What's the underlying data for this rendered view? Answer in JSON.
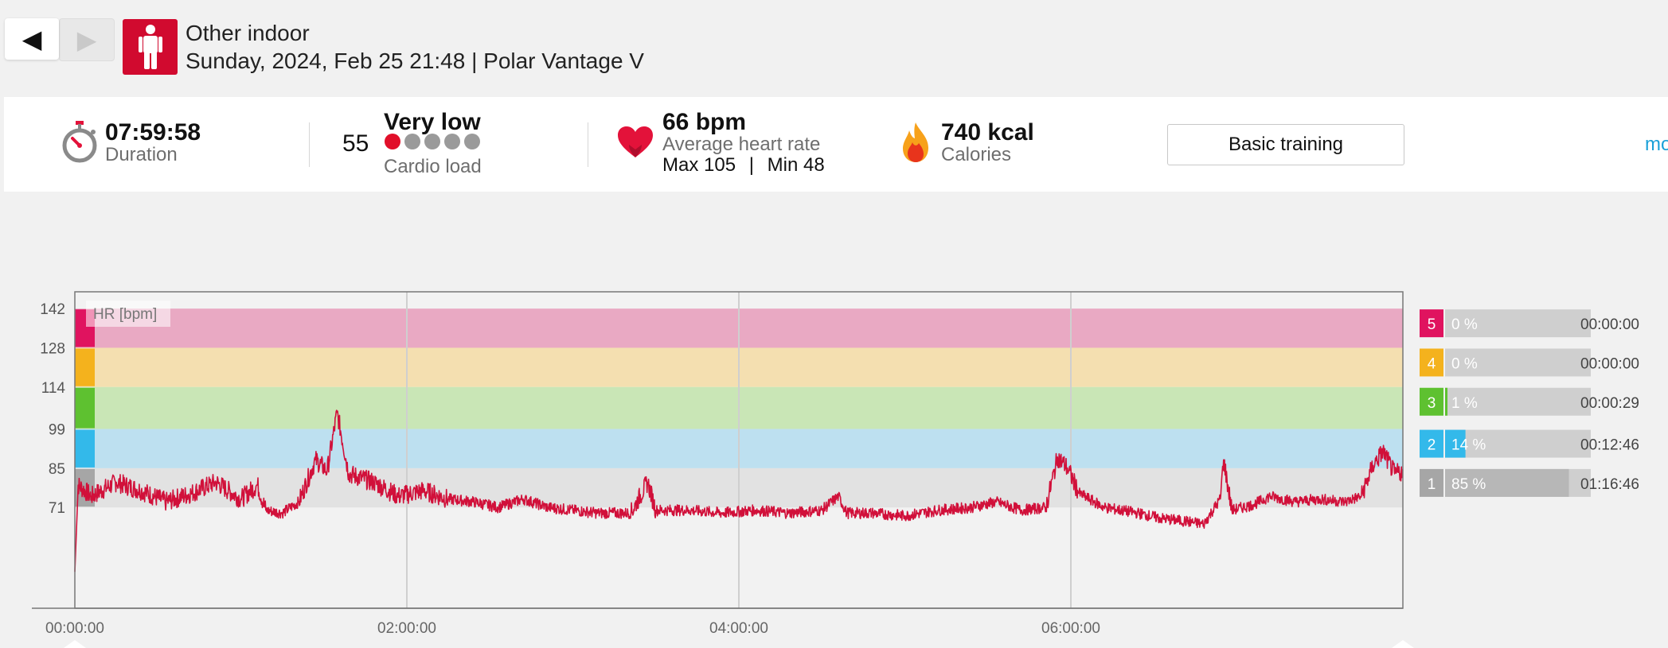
{
  "nav": {
    "back_glyph": "◀",
    "forward_glyph": "▶"
  },
  "header": {
    "sport_icon": "person-standing-icon",
    "sport": "Other indoor",
    "subtitle": "Sunday, 2024, Feb 25 21:48 | Polar Vantage V"
  },
  "summary": {
    "duration": {
      "value": "07:59:58",
      "label": "Duration",
      "icon": "stopwatch-icon"
    },
    "cardio": {
      "value": "55",
      "level": "Very low",
      "label": "Cardio load",
      "dots_total": 5,
      "dots_filled": 1
    },
    "heart": {
      "value": "66 bpm",
      "label": "Average heart rate",
      "max_label": "Max 105",
      "separator": "|",
      "min_label": "Min 48",
      "icon": "heart-icon"
    },
    "calories": {
      "value": "740 kcal",
      "label": "Calories",
      "icon": "flame-icon"
    },
    "training_button": "Basic training",
    "more_link": "mo"
  },
  "colors": {
    "brand_red": "#d10a2f",
    "hr_line": "#d1103a",
    "zone5": "#e0135f",
    "zone4": "#f4b21d",
    "zone3": "#5ec130",
    "zone2": "#33b9ea",
    "zone1": "#a6a6a6",
    "link": "#1aa0d8"
  },
  "chart_data": {
    "type": "line",
    "title": "",
    "series_label": "HR [bpm]",
    "xlabel": "",
    "ylabel": "HR [bpm]",
    "x_ticks": [
      "00:00:00",
      "02:00:00",
      "04:00:00",
      "06:00:00"
    ],
    "y_ticks": [
      "142",
      "128",
      "114",
      "99",
      "85",
      "71"
    ],
    "x_range_hours": [
      0,
      8
    ],
    "y_range_bpm": [
      35,
      148
    ],
    "grid": "vertical",
    "zones": [
      {
        "zone": "5",
        "lower_bpm": 128,
        "upper_bpm": 142,
        "percent": "0 %",
        "fraction": 0.0,
        "time": "00:00:00"
      },
      {
        "zone": "4",
        "lower_bpm": 114,
        "upper_bpm": 128,
        "percent": "0 %",
        "fraction": 0.0,
        "time": "00:00:00"
      },
      {
        "zone": "3",
        "lower_bpm": 99,
        "upper_bpm": 114,
        "percent": "1 %",
        "fraction": 0.01,
        "time": "00:00:29"
      },
      {
        "zone": "2",
        "lower_bpm": 85,
        "upper_bpm": 99,
        "percent": "14 %",
        "fraction": 0.14,
        "time": "00:12:46"
      },
      {
        "zone": "1",
        "lower_bpm": 71,
        "upper_bpm": 85,
        "percent": "85 %",
        "fraction": 0.85,
        "time": "01:16:46"
      }
    ],
    "hr_points": [
      [
        0.0,
        48
      ],
      [
        0.02,
        79
      ],
      [
        0.1,
        75
      ],
      [
        0.25,
        80
      ],
      [
        0.4,
        77
      ],
      [
        0.55,
        73
      ],
      [
        0.7,
        76
      ],
      [
        0.85,
        80
      ],
      [
        1.0,
        74
      ],
      [
        1.1,
        79
      ],
      [
        1.15,
        70
      ],
      [
        1.25,
        69
      ],
      [
        1.35,
        73
      ],
      [
        1.45,
        88
      ],
      [
        1.52,
        84
      ],
      [
        1.58,
        105
      ],
      [
        1.65,
        83
      ],
      [
        1.8,
        80
      ],
      [
        1.95,
        75
      ],
      [
        2.1,
        77
      ],
      [
        2.25,
        74
      ],
      [
        2.4,
        73
      ],
      [
        2.55,
        71
      ],
      [
        2.7,
        74
      ],
      [
        2.85,
        71
      ],
      [
        3.0,
        70
      ],
      [
        3.15,
        69
      ],
      [
        3.35,
        69
      ],
      [
        3.45,
        80
      ],
      [
        3.5,
        70
      ],
      [
        3.7,
        70
      ],
      [
        3.9,
        69
      ],
      [
        4.1,
        70
      ],
      [
        4.3,
        69
      ],
      [
        4.5,
        70
      ],
      [
        4.6,
        75
      ],
      [
        4.65,
        69
      ],
      [
        4.8,
        69
      ],
      [
        5.0,
        68
      ],
      [
        5.2,
        70
      ],
      [
        5.4,
        71
      ],
      [
        5.55,
        73
      ],
      [
        5.7,
        70
      ],
      [
        5.85,
        71
      ],
      [
        5.92,
        89
      ],
      [
        5.98,
        85
      ],
      [
        6.05,
        76
      ],
      [
        6.2,
        71
      ],
      [
        6.4,
        69
      ],
      [
        6.55,
        67
      ],
      [
        6.7,
        66
      ],
      [
        6.8,
        65
      ],
      [
        6.9,
        74
      ],
      [
        6.92,
        88
      ],
      [
        6.97,
        70
      ],
      [
        7.1,
        72
      ],
      [
        7.2,
        75
      ],
      [
        7.35,
        73
      ],
      [
        7.5,
        74
      ],
      [
        7.65,
        73
      ],
      [
        7.75,
        75
      ],
      [
        7.82,
        86
      ],
      [
        7.88,
        91
      ],
      [
        7.95,
        83
      ],
      [
        8.0,
        84
      ]
    ]
  }
}
